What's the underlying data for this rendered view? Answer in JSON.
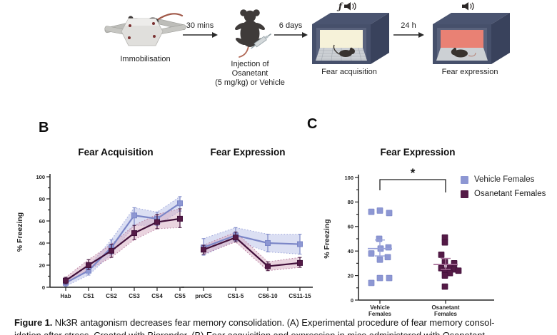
{
  "panelA": {
    "immobilisation_label": "Immobilisation",
    "injection_label_1": "Injection of Osanetant",
    "injection_label_2": "(5 mg/kg) or Vehicle",
    "acquisition_label": "Fear acquisition",
    "expression_label": "Fear expression",
    "arrow_1": "30 mins",
    "arrow_2": "6 days",
    "arrow_3": "24 h",
    "acquisition_sound": "ƒ",
    "acq_wall_color": "#f6f2d9",
    "exp_wall_color": "#e98174"
  },
  "panelB": {
    "label": "B"
  },
  "panelC": {
    "label": "C"
  },
  "colors": {
    "vehicle": {
      "marker": "#8d97d3",
      "line": "#7b86c7",
      "band": "#b7bfe8",
      "edge": "#97a0d8",
      "mean": "#97a0d8"
    },
    "osanetant": {
      "marker": "#541a46",
      "line": "#41103a",
      "band": "#d6aabf",
      "edge": "#b5789c",
      "mean": "#a8709a"
    }
  },
  "chart_data": [
    {
      "type": "line",
      "panel": "B-left",
      "title": "Fear Acquisition",
      "ylabel": "% Freezing",
      "ylim": [
        0,
        100
      ],
      "categories": [
        "Hab",
        "CS1",
        "CS2",
        "CS3",
        "CS4",
        "CS5"
      ],
      "series": [
        {
          "name": "Vehicle Females",
          "values": [
            4,
            15,
            36,
            65,
            62,
            76
          ],
          "upper": [
            7,
            19,
            43,
            72,
            68,
            82
          ],
          "lower": [
            1,
            11,
            30,
            56,
            56,
            69
          ]
        },
        {
          "name": "Osanetant Females",
          "values": [
            6,
            20,
            33,
            49,
            59,
            62
          ],
          "upper": [
            9,
            25,
            39,
            56,
            66,
            71
          ],
          "lower": [
            3,
            16,
            27,
            43,
            53,
            54
          ]
        }
      ]
    },
    {
      "type": "line",
      "panel": "B-right",
      "title": "Fear Expression",
      "ylim": [
        0,
        100
      ],
      "categories": [
        "preCS",
        "CS1-5",
        "CS6-10",
        "CS11-15"
      ],
      "series": [
        {
          "name": "Vehicle Females",
          "values": [
            36,
            47,
            40,
            39
          ],
          "upper": [
            44,
            54,
            48,
            48
          ],
          "lower": [
            29,
            42,
            32,
            30
          ]
        },
        {
          "name": "Osanetant Females",
          "values": [
            34,
            45,
            19,
            22
          ],
          "upper": [
            38,
            50,
            23,
            27
          ],
          "lower": [
            30,
            41,
            15,
            18
          ]
        }
      ]
    },
    {
      "type": "scatter",
      "panel": "C",
      "title": "Fear Expression",
      "ylabel": "% Freezing",
      "ylim": [
        0,
        100
      ],
      "categories": [
        [
          "Vehicle",
          "Females"
        ],
        [
          "Osanetant",
          "Females"
        ]
      ],
      "groups": [
        {
          "name": "Vehicle Females",
          "points": [
            [
              72,
              -12
            ],
            [
              73,
              0
            ],
            [
              71,
              13
            ],
            [
              50,
              -1
            ],
            [
              43,
              12
            ],
            [
              42,
              1
            ],
            [
              38,
              -12
            ],
            [
              35,
              11
            ],
            [
              33,
              0
            ],
            [
              18,
              0
            ],
            [
              18,
              13
            ],
            [
              14,
              -12
            ]
          ],
          "mean": 42,
          "upper": 49,
          "lower": 36
        },
        {
          "name": "Osanetant Females",
          "points": [
            [
              51,
              -1
            ],
            [
              47,
              -1
            ],
            [
              37,
              -6
            ],
            [
              31,
              -1
            ],
            [
              30,
              12
            ],
            [
              27,
              6
            ],
            [
              26,
              -6
            ],
            [
              25,
              12
            ],
            [
              24,
              18
            ],
            [
              24,
              -1
            ],
            [
              22,
              6
            ],
            [
              20,
              -1
            ],
            [
              11,
              -1
            ]
          ],
          "mean": 29,
          "upper": 34,
          "lower": 25
        }
      ],
      "significance": "*"
    }
  ],
  "caption": {
    "prefix": "Figure 1.",
    "line1_rest": " Nk3R antagonism decreases fear memory consolidation. (A) Experimental procedure of fear memory consol-",
    "line2": "idation after stress. Created with Biorender. (B) Fear acquisition and expression in mice administered with Osanetant"
  }
}
